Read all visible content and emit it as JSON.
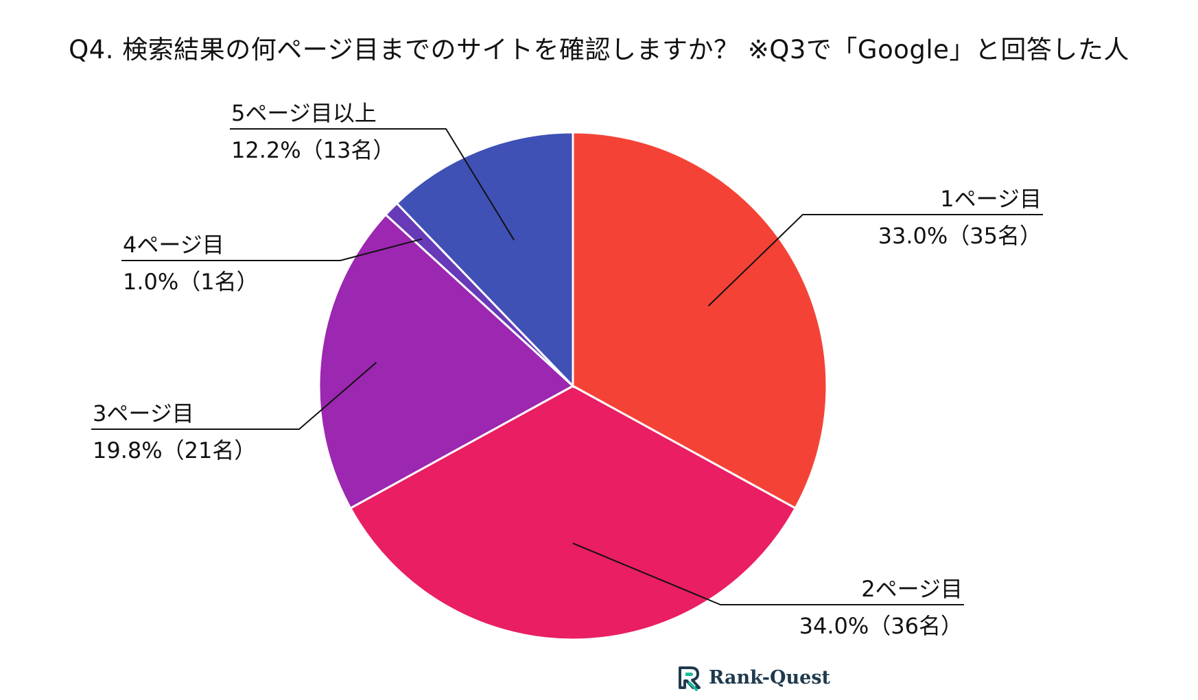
{
  "chart_data": {
    "type": "pie",
    "title": "Q4. 検索結果の何ページ目までのサイトを確認しますか？ ※Q3で「Google」と回答した人",
    "slices": [
      {
        "label": "1ページ目",
        "value": 33.0,
        "value_text": "33.0%（35名）",
        "count": 35,
        "color": "#F44336"
      },
      {
        "label": "2ページ目",
        "value": 34.0,
        "value_text": "34.0%（36名）",
        "count": 36,
        "color": "#E91E63"
      },
      {
        "label": "3ページ目",
        "value": 19.8,
        "value_text": "19.8%（21名）",
        "count": 21,
        "color": "#9C27B0"
      },
      {
        "label": "4ページ目",
        "value": 1.0,
        "value_text": "1.0%（1名）",
        "count": 1,
        "color": "#673AB7"
      },
      {
        "label": "5ページ目以上",
        "value": 12.2,
        "value_text": "12.2%（13名）",
        "count": 13,
        "color": "#3F51B5"
      }
    ],
    "start_angle": "top, clockwise",
    "legend": "none (callout labels)"
  },
  "brand": {
    "name": "Rank-Quest",
    "icon": "rank-quest-logo-icon",
    "accent_color": "#1ABC9C",
    "text_color": "#1F3A4D"
  }
}
